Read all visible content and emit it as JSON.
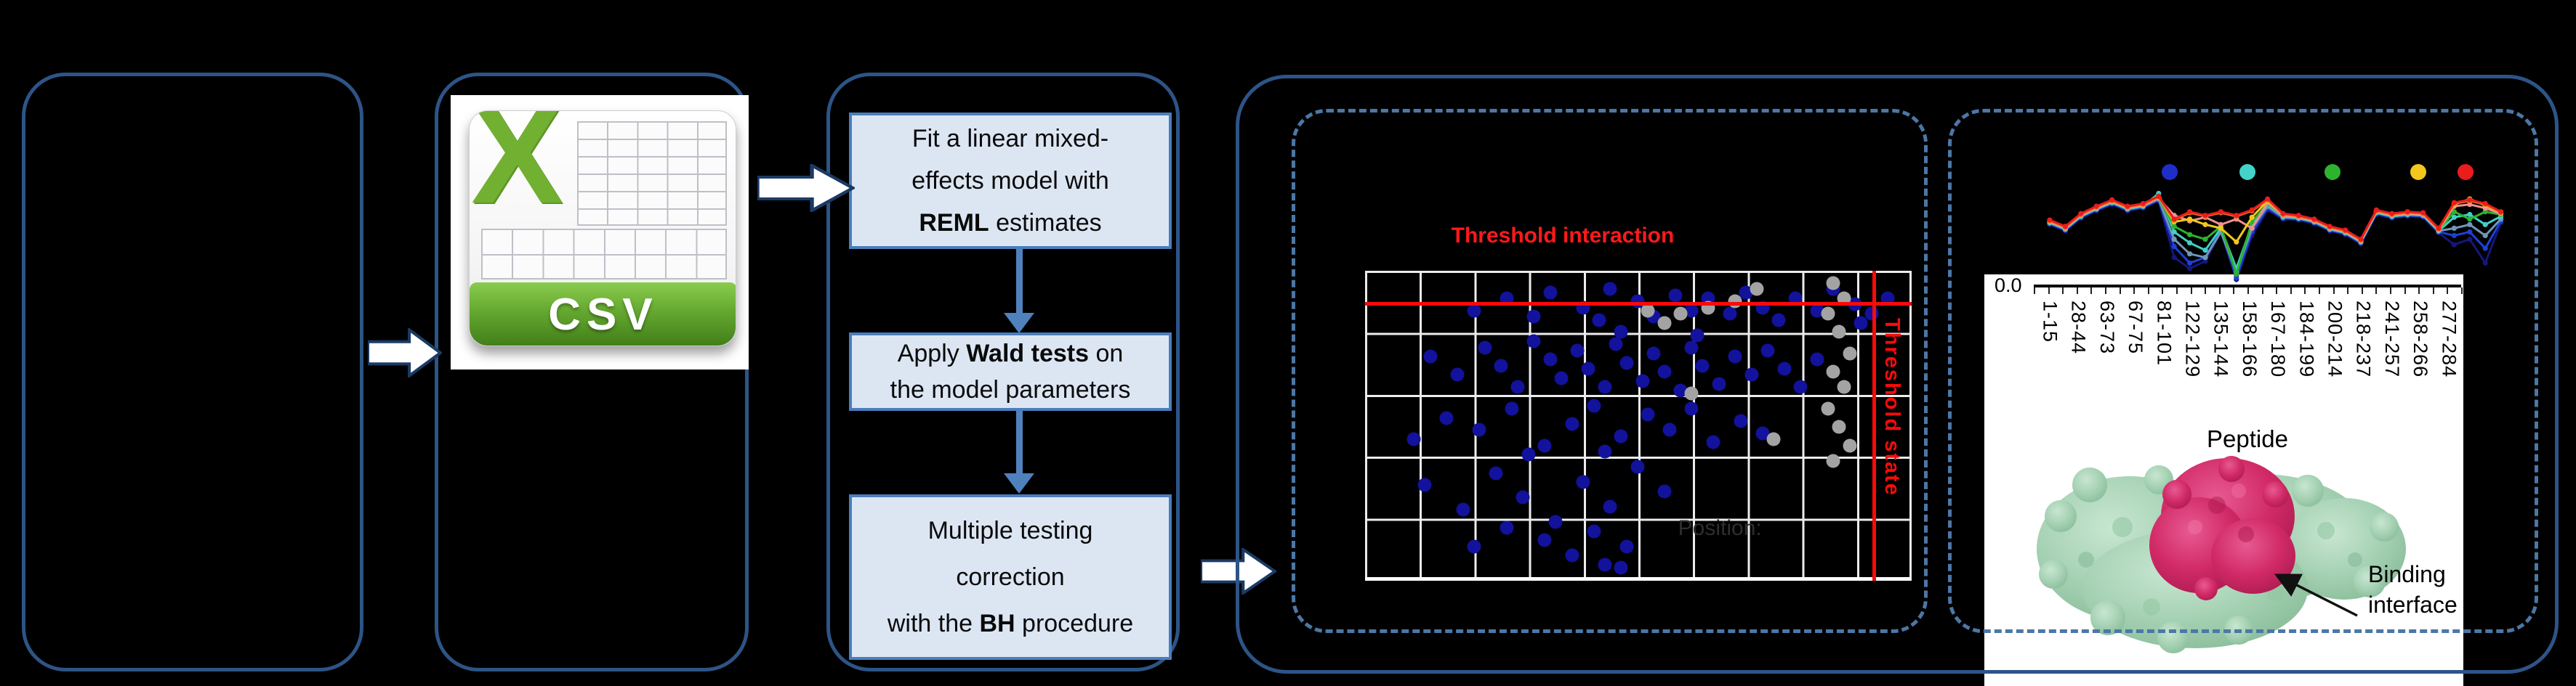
{
  "csv": {
    "badge": "CSV"
  },
  "pipeline": {
    "steps": [
      {
        "lines": [
          [
            {
              "t": "Fit a linear mixed-",
              "b": false
            }
          ],
          [
            {
              "t": "effects model with",
              "b": false
            }
          ],
          [
            {
              "t": "REML",
              "b": true
            },
            {
              "t": " estimates",
              "b": false
            }
          ]
        ]
      },
      {
        "lines": [
          [
            {
              "t": "Apply ",
              "b": false
            },
            {
              "t": "Wald tests",
              "b": true
            },
            {
              "t": " on",
              "b": false
            }
          ],
          [
            {
              "t": "the model parameters",
              "b": false
            }
          ]
        ]
      },
      {
        "lines": [
          [
            {
              "t": "Multiple testing",
              "b": false
            }
          ],
          [
            {
              "t": "correction",
              "b": false
            }
          ],
          [
            {
              "t": "with the ",
              "b": false
            },
            {
              "t": "BH",
              "b": true
            },
            {
              "t": " procedure",
              "b": false
            }
          ]
        ]
      }
    ]
  },
  "chart_data": [
    {
      "type": "scatter",
      "title": "Threshold interaction",
      "threshold_labels": {
        "horizontal": "Threshold interaction",
        "vertical": "Threshold state"
      },
      "partial_axis_label": "Position:",
      "grid": {
        "cols": 10,
        "rows": 5,
        "line_color": "#ececec",
        "background": "#000000"
      },
      "threshold_lines_pct": {
        "horizontal_y": 10.5,
        "vertical_x": 92.8,
        "color": "#fb0a0a"
      },
      "series": [
        {
          "name": "peptides-significant",
          "color": "#12129c",
          "points_pct": [
            [
              20,
              13
            ],
            [
              26,
              9
            ],
            [
              31,
              15
            ],
            [
              34,
              7
            ],
            [
              40,
              12
            ],
            [
              43,
              16
            ],
            [
              45,
              6
            ],
            [
              50,
              10
            ],
            [
              53,
              15
            ],
            [
              57,
              8
            ],
            [
              60,
              13
            ],
            [
              63,
              9
            ],
            [
              67,
              14
            ],
            [
              70,
              7
            ],
            [
              73,
              12
            ],
            [
              76,
              16
            ],
            [
              79,
              9
            ],
            [
              83,
              13
            ],
            [
              86,
              6
            ],
            [
              90,
              11
            ],
            [
              93,
              14
            ],
            [
              96,
              9
            ],
            [
              91,
              17
            ],
            [
              12,
              28
            ],
            [
              17,
              34
            ],
            [
              22,
              25
            ],
            [
              25,
              31
            ],
            [
              28,
              38
            ],
            [
              31,
              23
            ],
            [
              34,
              29
            ],
            [
              36,
              35
            ],
            [
              39,
              26
            ],
            [
              41,
              32
            ],
            [
              44,
              38
            ],
            [
              46,
              24
            ],
            [
              48,
              30
            ],
            [
              51,
              36
            ],
            [
              53,
              27
            ],
            [
              55,
              33
            ],
            [
              58,
              39
            ],
            [
              60,
              25
            ],
            [
              62,
              31
            ],
            [
              65,
              37
            ],
            [
              68,
              28
            ],
            [
              71,
              34
            ],
            [
              74,
              26
            ],
            [
              77,
              32
            ],
            [
              80,
              38
            ],
            [
              83,
              29
            ],
            [
              61,
              21
            ],
            [
              47,
              20
            ],
            [
              9,
              55
            ],
            [
              15,
              48
            ],
            [
              21,
              52
            ],
            [
              27,
              45
            ],
            [
              33,
              57
            ],
            [
              38,
              50
            ],
            [
              42,
              44
            ],
            [
              47,
              54
            ],
            [
              52,
              47
            ],
            [
              56,
              52
            ],
            [
              60,
              45
            ],
            [
              64,
              56
            ],
            [
              69,
              49
            ],
            [
              73,
              53
            ],
            [
              44,
              59
            ],
            [
              30,
              60
            ],
            [
              11,
              70
            ],
            [
              18,
              78
            ],
            [
              24,
              66
            ],
            [
              29,
              74
            ],
            [
              35,
              82
            ],
            [
              40,
              69
            ],
            [
              45,
              77
            ],
            [
              50,
              64
            ],
            [
              55,
              72
            ],
            [
              33,
              88
            ],
            [
              42,
              85
            ],
            [
              48,
              90
            ],
            [
              38,
              93
            ],
            [
              26,
              84
            ],
            [
              20,
              90
            ],
            [
              44,
              96
            ],
            [
              47,
              97
            ]
          ]
        },
        {
          "name": "peptides-nonsignificant",
          "color": "#a3a3a3",
          "points_pct": [
            [
              86,
              4
            ],
            [
              88,
              9
            ],
            [
              85,
              14
            ],
            [
              87,
              20
            ],
            [
              89,
              27
            ],
            [
              86,
              33
            ],
            [
              88,
              38
            ],
            [
              85,
              45
            ],
            [
              87,
              51
            ],
            [
              89,
              57
            ],
            [
              86,
              62
            ],
            [
              75,
              55
            ],
            [
              68,
              10
            ],
            [
              72,
              6
            ],
            [
              63,
              12
            ],
            [
              55,
              17
            ],
            [
              58,
              14
            ],
            [
              52,
              13
            ],
            [
              60,
              40
            ]
          ]
        }
      ]
    },
    {
      "type": "line",
      "xlabel": "Peptide",
      "ytick_label": "0.0",
      "categories": [
        "1-15",
        "28-44",
        "63-73",
        "67-75",
        "81-101",
        "122-129",
        "135-144",
        "158-166",
        "167-180",
        "184-199",
        "200-214",
        "218-237",
        "241-257",
        "258-266",
        "277-284"
      ],
      "legend_dot_colors": [
        "#1f2ec9",
        "#43d4c9",
        "#2db32d",
        "#f3c71b",
        "#ea1c1c"
      ],
      "series": [
        {
          "name": "t-navy",
          "color": "#16167d",
          "values_pct": [
            36,
            43,
            29,
            21,
            14,
            21,
            18,
            10,
            72,
            84,
            76,
            44,
            96,
            48,
            20,
            30,
            31,
            35,
            43,
            47,
            57,
            25,
            29,
            27,
            28,
            45,
            58,
            52,
            78,
            34
          ]
        },
        {
          "name": "t-blue",
          "color": "#1c41d6",
          "values_pct": [
            35,
            42,
            28,
            20,
            13,
            20,
            17,
            9,
            60,
            78,
            72,
            42,
            94,
            44,
            18,
            29,
            30,
            34,
            42,
            46,
            56,
            24,
            28,
            26,
            27,
            44,
            48,
            44,
            62,
            32
          ]
        },
        {
          "name": "t-steel",
          "color": "#7097b8",
          "values_pct": [
            34,
            41,
            27,
            19,
            12,
            19,
            16,
            8,
            52,
            68,
            72,
            44,
            88,
            40,
            16,
            28,
            29,
            33,
            41,
            45,
            55,
            23,
            27,
            25,
            26,
            43,
            40,
            36,
            48,
            30
          ]
        },
        {
          "name": "t-cyan",
          "color": "#41d0c5",
          "values_pct": [
            34,
            41,
            27,
            19,
            12,
            19,
            16,
            2,
            44,
            56,
            64,
            40,
            84,
            36,
            14,
            27,
            29,
            33,
            41,
            45,
            55,
            23,
            27,
            25,
            26,
            43,
            28,
            25,
            36,
            27
          ]
        },
        {
          "name": "t-green",
          "color": "#2db32d",
          "values_pct": [
            33,
            40,
            26,
            18,
            11,
            18,
            15,
            7,
            38,
            47,
            52,
            38,
            90,
            33,
            13,
            26,
            28,
            32,
            40,
            44,
            54,
            22,
            26,
            24,
            25,
            42,
            22,
            30,
            22,
            25
          ]
        },
        {
          "name": "t-salmon",
          "color": "#f09090",
          "values_pct": [
            33,
            40,
            26,
            18,
            11,
            18,
            15,
            7,
            26,
            32,
            28,
            36,
            30,
            40,
            12,
            26,
            28,
            32,
            40,
            44,
            54,
            22,
            26,
            24,
            25,
            42,
            16,
            14,
            18,
            24
          ]
        },
        {
          "name": "t-yellow",
          "color": "#f3c71b",
          "values_pct": [
            32,
            39,
            25,
            17,
            10,
            17,
            14,
            6,
            33,
            30,
            36,
            40,
            55,
            28,
            10,
            25,
            27,
            31,
            39,
            43,
            53,
            21,
            25,
            23,
            24,
            41,
            14,
            8,
            15,
            23
          ]
        },
        {
          "name": "t-orange",
          "color": "#f07820",
          "values_pct": [
            32,
            39,
            25,
            17,
            10,
            17,
            14,
            6,
            31,
            23,
            27,
            23,
            27,
            21,
            9,
            25,
            27,
            31,
            39,
            43,
            53,
            21,
            25,
            23,
            24,
            41,
            13,
            10,
            14,
            23
          ]
        },
        {
          "name": "t-red",
          "color": "#ea1c1c",
          "values_pct": [
            31,
            38,
            24,
            16,
            9,
            16,
            13,
            5,
            30,
            22,
            26,
            22,
            26,
            20,
            8,
            24,
            26,
            30,
            38,
            42,
            52,
            20,
            24,
            22,
            23,
            40,
            12,
            9,
            13,
            22
          ]
        }
      ],
      "annotation": {
        "line1": "Binding",
        "line2": "interface"
      }
    }
  ]
}
